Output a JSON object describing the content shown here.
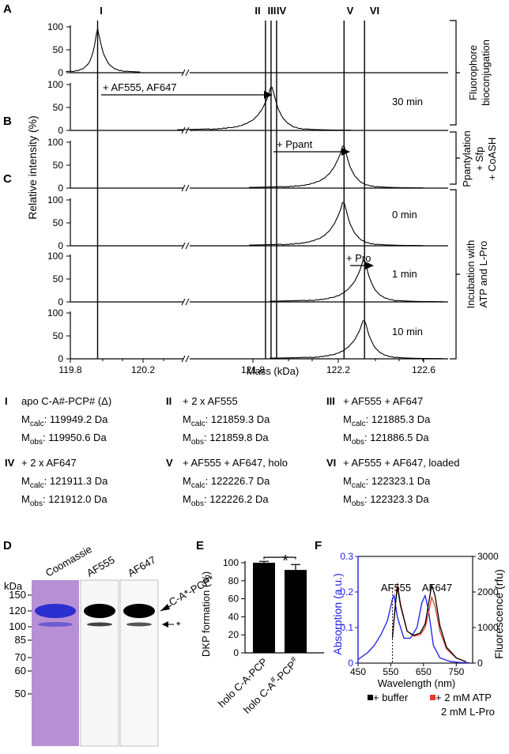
{
  "panel_letters": {
    "a": "A",
    "b": "B",
    "c": "C",
    "d": "D",
    "e": "E",
    "f": "F"
  },
  "ms": {
    "y_axis_label": "Relative intensity (%)",
    "x_axis_label": "Mass (kDa)",
    "x_ticks": [
      "119.8",
      "120.2",
      "121.8",
      "122.2",
      "122.6"
    ],
    "y_ticks": [
      "0",
      "50",
      "100"
    ],
    "roman": [
      "I",
      "II",
      "III",
      "IV",
      "V",
      "VI"
    ],
    "annotations": {
      "af": "+ AF555, AF647",
      "ppant": "+ Ppant",
      "pro": "+ Pro"
    },
    "time_labels": {
      "row2": "30 min",
      "row4": "0 min",
      "row5": "1 min",
      "row6": "10 min"
    },
    "brackets": {
      "fluorophore": [
        "Fluorophore",
        "bioconjugation"
      ],
      "ppantylation": [
        "Ppantylation",
        "+ Sfp",
        "+ CoASH"
      ],
      "incubation": [
        "Incubation with",
        "ATP and L-Pro"
      ]
    },
    "chart_data": {
      "type": "line",
      "x_range": [
        119.8,
        122.6
      ],
      "axis_break_between": [
        120.2,
        121.8
      ],
      "ylim": [
        0,
        100
      ],
      "vertical_markers": {
        "I": 119.95,
        "II": 121.859,
        "III": 121.885,
        "IV": 121.911,
        "V": 122.227,
        "VI": 122.323
      },
      "rows": [
        {
          "peak_mass": 119.95,
          "peak_height": 97
        },
        {
          "peak_mass": 121.89,
          "peak_height": 95
        },
        {
          "peak_mass": 122.227,
          "peak_height": 93
        },
        {
          "peak_mass": 122.227,
          "peak_height": 96
        },
        {
          "peak_mass": 122.323,
          "peak_height": 92
        },
        {
          "peak_mass": 122.323,
          "peak_height": 85
        }
      ]
    }
  },
  "species": [
    {
      "num": "I",
      "desc": "apo C-A#-PCP# (Δ)",
      "calc": ": 119949.2 Da",
      "obs": ": 119950.6 Da"
    },
    {
      "num": "II",
      "desc": "+ 2 x AF555",
      "calc": ": 121859.3 Da",
      "obs": ": 121859.8 Da"
    },
    {
      "num": "III",
      "desc": "+ AF555 + AF647",
      "calc": ": 121885.3 Da",
      "obs": ": 121886.5 Da"
    },
    {
      "num": "IV",
      "desc": "+ 2 x AF647",
      "calc": ": 121911.3 Da",
      "obs": ": 121912.0 Da"
    },
    {
      "num": "V",
      "desc": "+ AF555 + AF647, holo",
      "calc": ": 122226.7 Da",
      "obs": ": 122226.2 Da"
    },
    {
      "num": "VI",
      "desc": "+ AF555 + AF647, loaded",
      "calc": ": 122323.1 Da",
      "obs": ": 122323.3 Da"
    }
  ],
  "mass_labels": {
    "m": "M",
    "calc": "calc",
    "obs": "obs"
  },
  "gel": {
    "kda_label": "kDa",
    "markers": [
      "150",
      "120",
      "100",
      "85",
      "70",
      "60",
      "50"
    ],
    "lanes": [
      "Coomassie",
      "AF555",
      "AF647"
    ],
    "band_label": "C-A*-PCP*",
    "star_label": "*",
    "colors": {
      "coomassie_bg": "#b78fd4",
      "coomassie_band": "#2b2fd0"
    }
  },
  "bar": {
    "ylabel": "DKP formation (%)",
    "y_ticks": [
      "0",
      "20",
      "40",
      "60",
      "80",
      "100"
    ],
    "significance": "*",
    "chart_data": {
      "type": "bar",
      "categories": [
        "holo C-A-PCP",
        "holo C-A#-PCP#"
      ],
      "values": [
        100,
        92
      ],
      "errors": [
        1.5,
        6
      ],
      "ylim": [
        0,
        100
      ]
    }
  },
  "spectra": {
    "left_label": "Absorption (a.u.)",
    "right_label": "Fluorescence (rfu)",
    "xlabel": "Wavelength (nm)",
    "peak_labels": [
      "AF555",
      "AF647"
    ],
    "x_ticks": [
      "450",
      "550",
      "650",
      "750"
    ],
    "left_ticks": [
      "0",
      "0.1",
      "0.2",
      "0.3"
    ],
    "right_ticks": [
      "0",
      "1000",
      "2000",
      "3000"
    ],
    "legend": {
      "buffer": "+ buffer",
      "atp": "+ 2 mM ATP",
      "pro": "2 mM L-Pro"
    },
    "colors": {
      "absorption": "#1e1ee6",
      "buffer": "#000000",
      "atp": "#e83a2a"
    },
    "chart_data": {
      "type": "line",
      "xlim": [
        450,
        800
      ],
      "ylim_left": [
        0,
        0.3
      ],
      "ylim_right": [
        0,
        3000
      ],
      "series": [
        {
          "name": "+ buffer",
          "axis": "right",
          "x": [
            555,
            565,
            570,
            580,
            600,
            620,
            640,
            655,
            665,
            675,
            685,
            700,
            720,
            750,
            780
          ],
          "y": [
            700,
            1700,
            2150,
            1600,
            900,
            780,
            850,
            1100,
            1650,
            2200,
            1900,
            1050,
            450,
            150,
            40
          ]
        },
        {
          "name": "+ 2 mM ATP 2 mM L-Pro",
          "axis": "right",
          "x": [
            555,
            565,
            570,
            580,
            600,
            620,
            640,
            655,
            665,
            675,
            685,
            700,
            720,
            750,
            780
          ],
          "y": [
            750,
            1750,
            2250,
            1650,
            900,
            760,
            800,
            1000,
            1400,
            1850,
            1600,
            900,
            400,
            140,
            40
          ]
        },
        {
          "axis": "left",
          "x": [
            450,
            480,
            500,
            520,
            540,
            555,
            560,
            570,
            590,
            610,
            630,
            645,
            655,
            665,
            680,
            700,
            730,
            760,
            790
          ],
          "y": [
            0.01,
            0.03,
            0.05,
            0.08,
            0.12,
            0.18,
            0.19,
            0.13,
            0.07,
            0.07,
            0.1,
            0.17,
            0.19,
            0.15,
            0.05,
            0.015,
            0.005,
            0.002,
            0.001
          ]
        }
      ]
    }
  }
}
